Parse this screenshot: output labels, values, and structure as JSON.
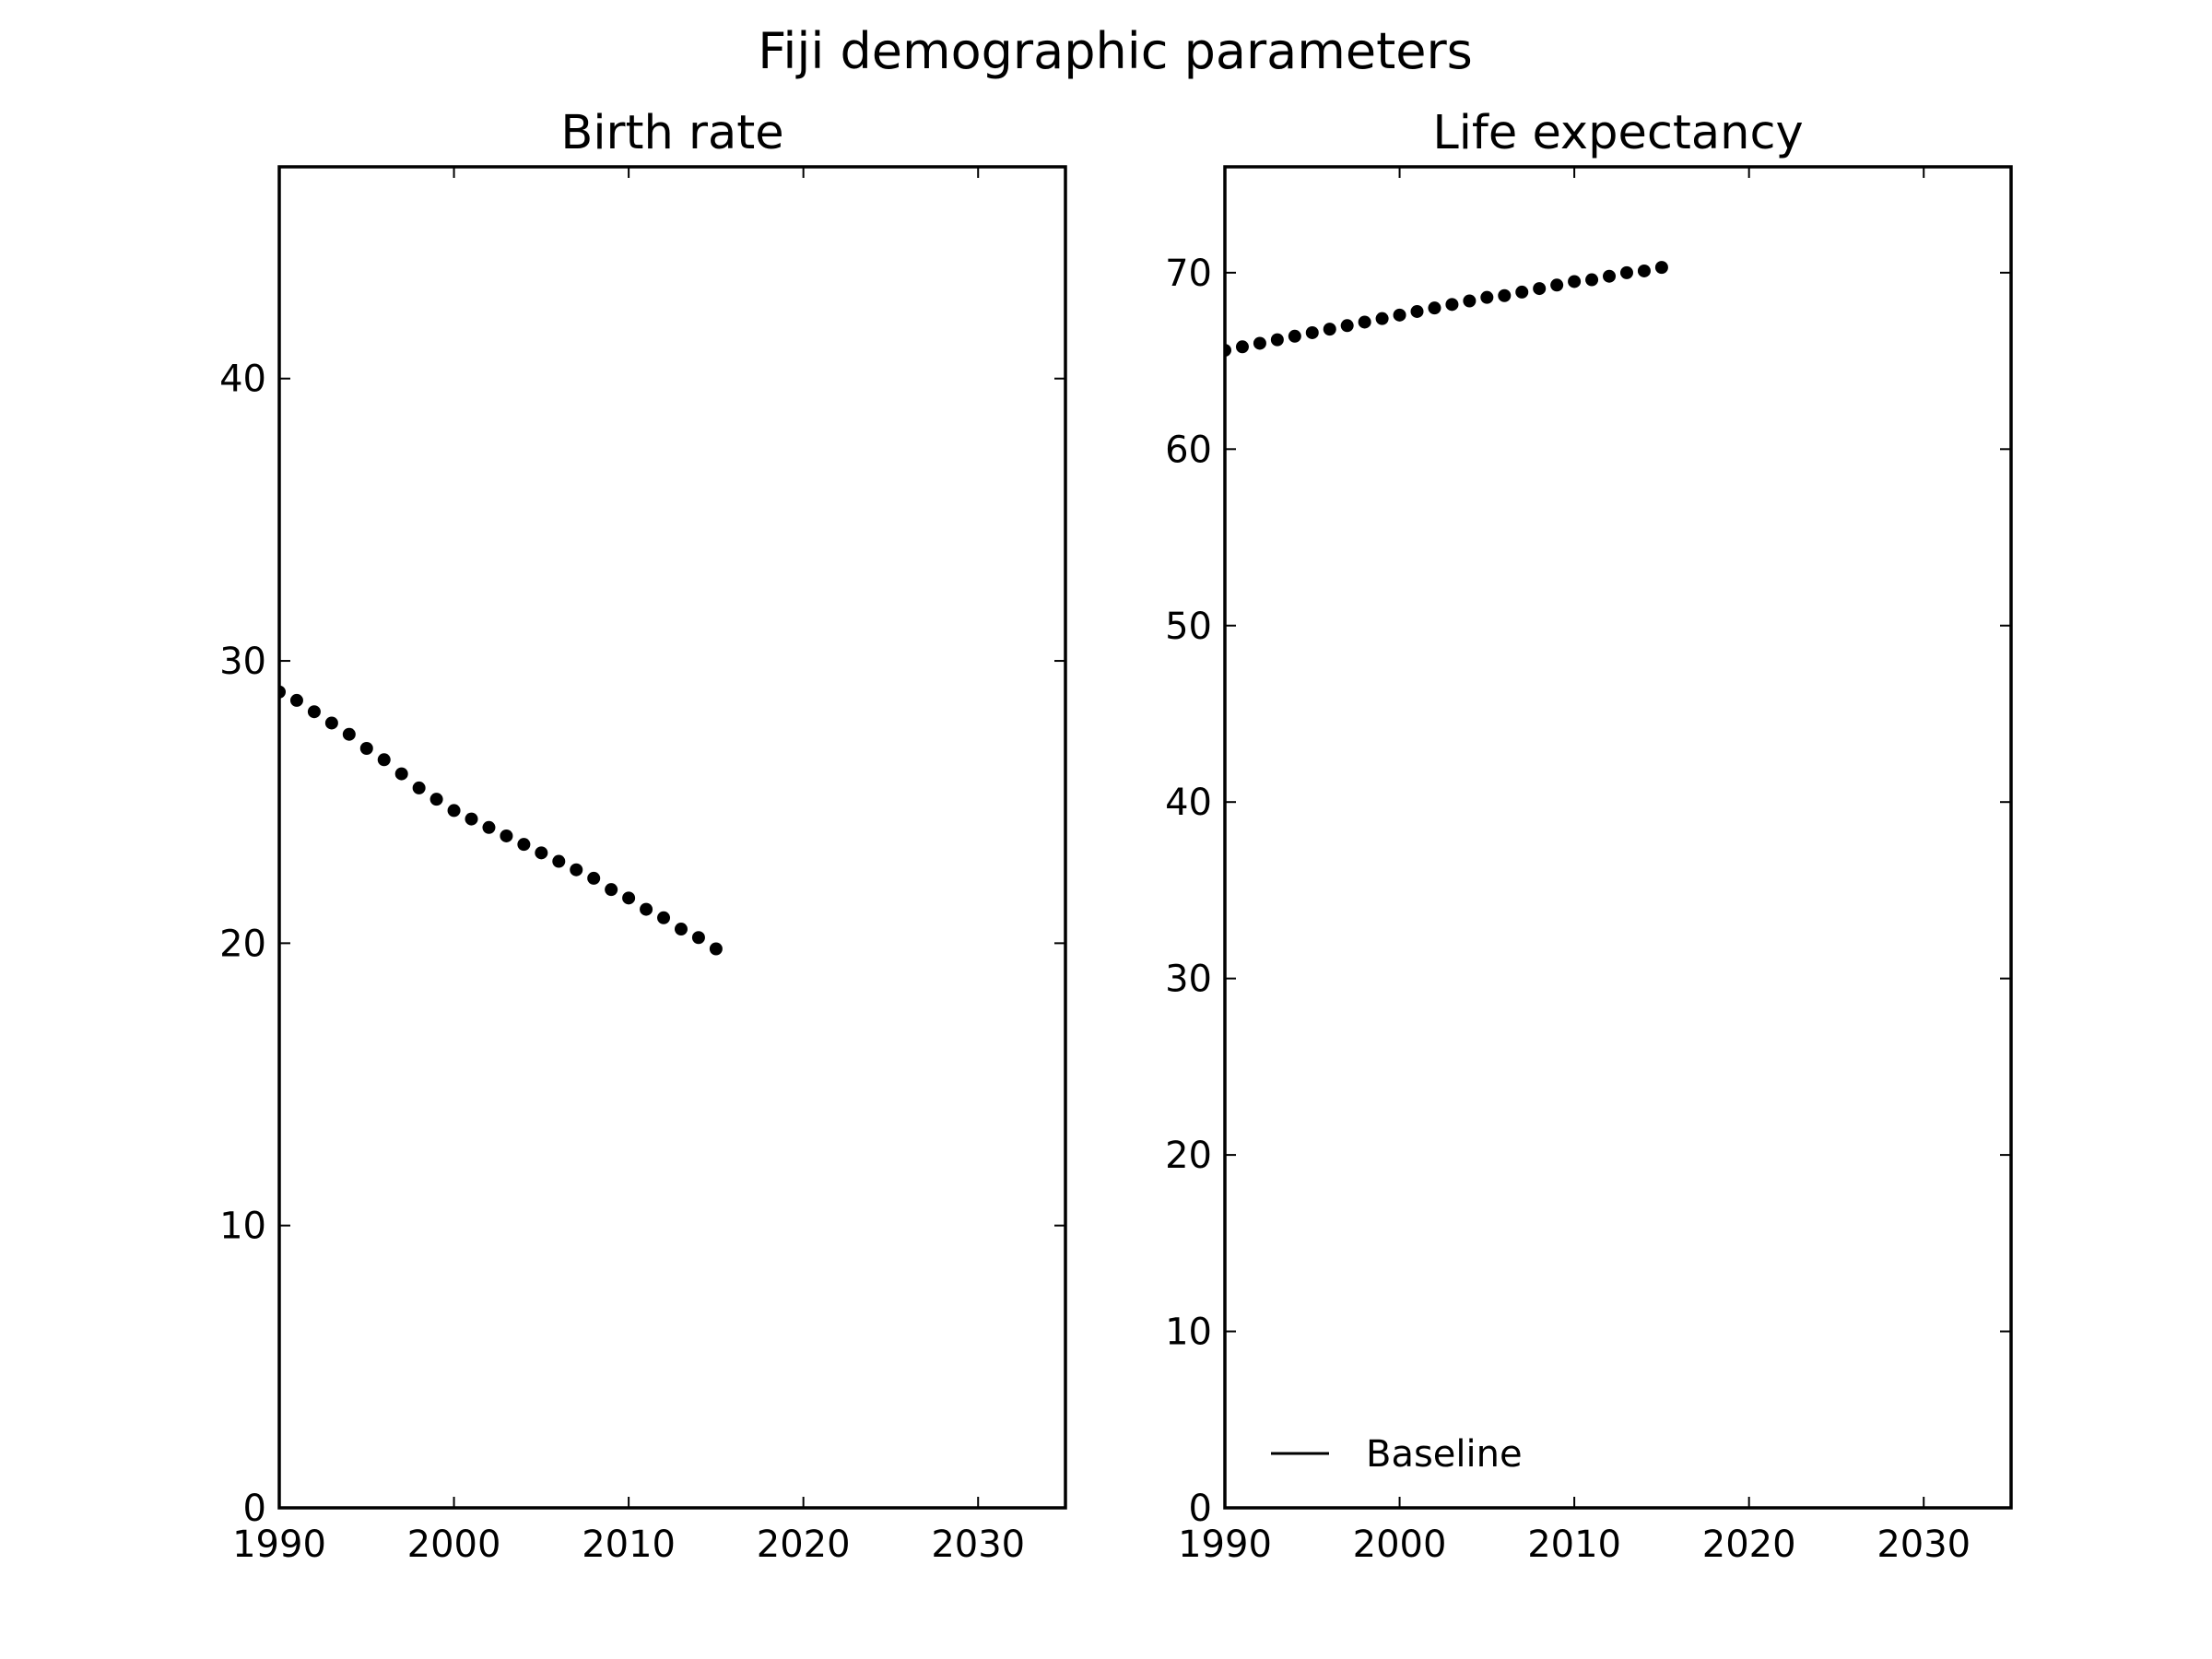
{
  "figure": {
    "title": "Fiji demographic parameters"
  },
  "chart_data": [
    {
      "type": "scatter",
      "title": "Birth rate",
      "xlabel": "",
      "ylabel": "",
      "xlim": [
        1990,
        2035
      ],
      "ylim": [
        0,
        47.5
      ],
      "xticks": [
        1990,
        2000,
        2010,
        2020,
        2030
      ],
      "yticks": [
        0,
        10,
        20,
        30,
        40
      ],
      "grid": false,
      "marker_color": "#000000",
      "series": [
        {
          "x": [
            1990,
            1991,
            1992,
            1993,
            1994,
            1995,
            1996,
            1997,
            1998,
            1999,
            2000,
            2001,
            2002,
            2003,
            2004,
            2005,
            2006,
            2007,
            2008,
            2009,
            2010,
            2011,
            2012,
            2013,
            2014,
            2015
          ],
          "y": [
            28.9,
            28.6,
            28.2,
            27.8,
            27.4,
            26.9,
            26.5,
            26.0,
            25.5,
            25.1,
            24.7,
            24.4,
            24.1,
            23.8,
            23.5,
            23.2,
            22.9,
            22.6,
            22.3,
            21.9,
            21.6,
            21.2,
            20.9,
            20.5,
            20.2,
            19.8
          ]
        }
      ]
    },
    {
      "type": "scatter",
      "title": "Life expectancy",
      "xlabel": "",
      "ylabel": "",
      "xlim": [
        1990,
        2035
      ],
      "ylim": [
        0,
        76
      ],
      "xticks": [
        1990,
        2000,
        2010,
        2020,
        2030
      ],
      "yticks": [
        0,
        10,
        20,
        30,
        40,
        50,
        60,
        70
      ],
      "grid": false,
      "marker_color": "#000000",
      "legend": {
        "placement": "lower-left",
        "entries": [
          {
            "label": "Baseline",
            "style": "line",
            "color": "#000000"
          }
        ]
      },
      "series": [
        {
          "x": [
            1990,
            1991,
            1992,
            1993,
            1994,
            1995,
            1996,
            1997,
            1998,
            1999,
            2000,
            2001,
            2002,
            2003,
            2004,
            2005,
            2006,
            2007,
            2008,
            2009,
            2010,
            2011,
            2012,
            2013,
            2014,
            2015
          ],
          "y": [
            65.6,
            65.8,
            66.0,
            66.2,
            66.4,
            66.6,
            66.8,
            67.0,
            67.2,
            67.4,
            67.6,
            67.8,
            68.0,
            68.2,
            68.4,
            68.6,
            68.7,
            68.9,
            69.1,
            69.3,
            69.5,
            69.6,
            69.8,
            70.0,
            70.1,
            70.3
          ]
        }
      ]
    }
  ]
}
